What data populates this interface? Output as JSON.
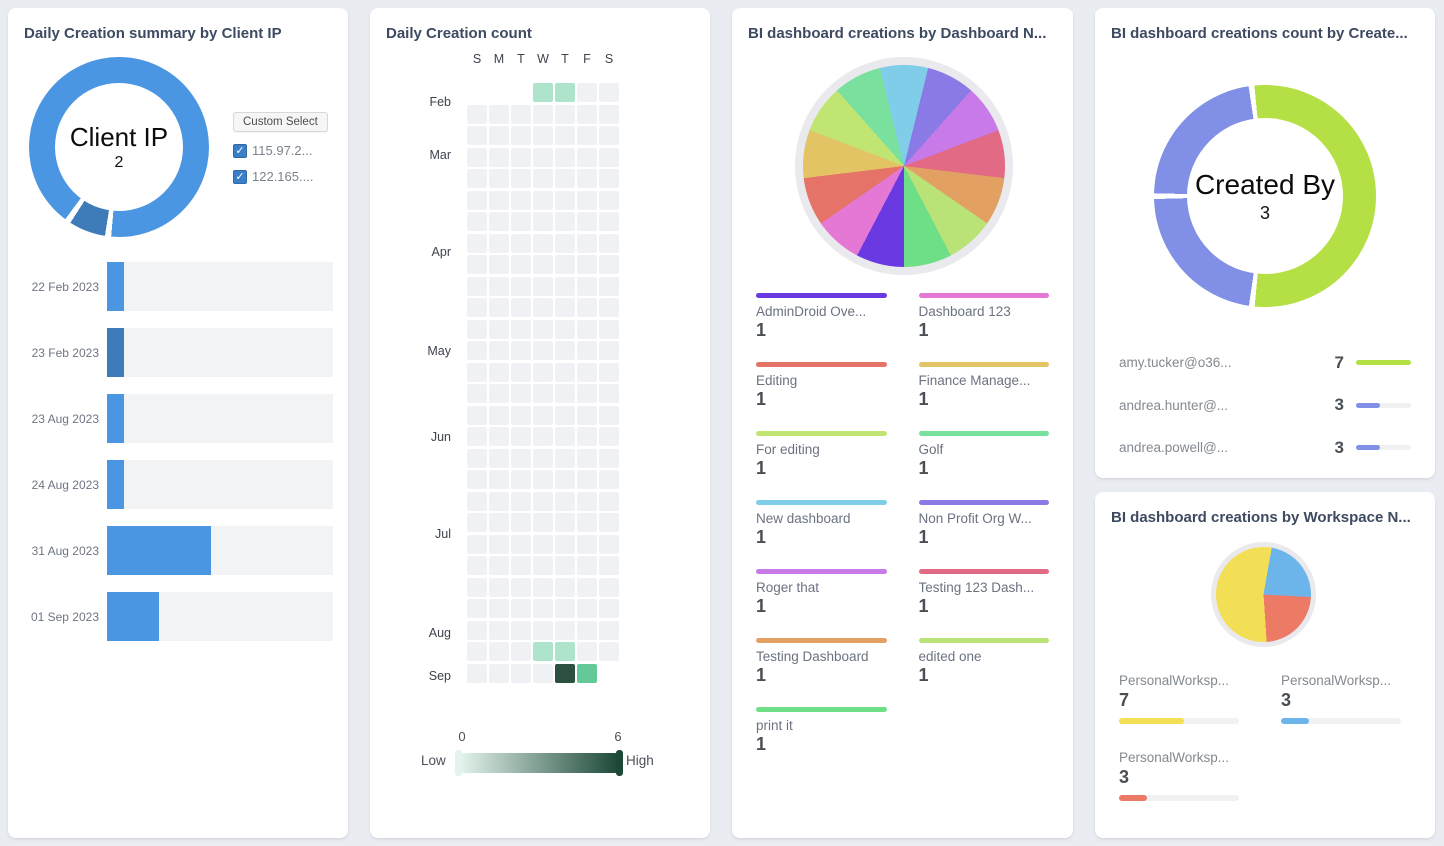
{
  "page": {
    "background": "#e9edf2"
  },
  "cards": [
    {
      "id": "client_ip",
      "title": "Daily Creation summary by Client IP",
      "custom_select_label": "Custom Select",
      "checkboxes": [
        {
          "label": "115.97.2...",
          "checked": true
        },
        {
          "label": "122.165....",
          "checked": true
        }
      ]
    },
    {
      "id": "daily_count",
      "title": "Daily Creation count"
    },
    {
      "id": "by_dashboard",
      "title": "BI dashboard creations by Dashboard N..."
    },
    {
      "id": "by_creator",
      "title": "BI dashboard creations count by Create..."
    },
    {
      "id": "by_workspace",
      "title": "BI dashboard creations by Workspace N..."
    }
  ],
  "chart_data": [
    {
      "id": "client_ip_donut",
      "type": "pie",
      "donut": true,
      "title": "Daily Creation summary by Client IP",
      "center_label": "Client IP",
      "center_value": "2",
      "series": [
        {
          "name": "115.97.2...",
          "value": 12,
          "color": "#4a96e2"
        },
        {
          "name": "122.165....",
          "value": 1,
          "color": "#3d7cb8"
        }
      ],
      "draw_order": [
        1,
        0
      ],
      "start_angle": 187,
      "gap_deg": 4
    },
    {
      "id": "client_ip_bars",
      "type": "bar",
      "orientation": "horizontal",
      "categories": [
        "22 Feb 2023",
        "23 Feb 2023",
        "23 Aug 2023",
        "24 Aug 2023",
        "31 Aug 2023",
        "01 Sep 2023"
      ],
      "values": [
        1,
        1,
        1,
        1,
        6,
        3
      ],
      "colors": [
        "#4a96e2",
        "#3d7cb8",
        "#4a96e2",
        "#4a96e2",
        "#4a96e2",
        "#4a96e2"
      ],
      "xmax": 13,
      "track_color": "#f2f3f5"
    },
    {
      "id": "daily_heatmap",
      "type": "heatmap",
      "title": "Daily Creation count",
      "weekday_labels": [
        "S",
        "M",
        "T",
        "W",
        "T",
        "F",
        "S"
      ],
      "month_labels": [
        {
          "label": "Feb",
          "row": 0.4
        },
        {
          "label": "Mar",
          "row": 2.9
        },
        {
          "label": "Apr",
          "row": 7.4
        },
        {
          "label": "May",
          "row": 12.0
        },
        {
          "label": "Jun",
          "row": 16.0
        },
        {
          "label": "Jul",
          "row": 20.5
        },
        {
          "label": "Aug",
          "row": 25.1
        },
        {
          "label": "Sep",
          "row": 27.1
        }
      ],
      "weeks": [
        [
          null,
          null,
          null,
          1,
          1,
          0,
          0
        ],
        [
          0,
          0,
          0,
          0,
          0,
          0,
          0
        ],
        [
          0,
          0,
          0,
          0,
          0,
          0,
          0
        ],
        [
          0,
          0,
          0,
          0,
          0,
          0,
          0
        ],
        [
          0,
          0,
          0,
          0,
          0,
          0,
          0
        ],
        [
          0,
          0,
          0,
          0,
          0,
          0,
          0
        ],
        [
          0,
          0,
          0,
          0,
          0,
          0,
          0
        ],
        [
          0,
          0,
          0,
          0,
          0,
          0,
          0
        ],
        [
          0,
          0,
          0,
          0,
          0,
          0,
          0
        ],
        [
          0,
          0,
          0,
          0,
          0,
          0,
          0
        ],
        [
          0,
          0,
          0,
          0,
          0,
          0,
          0
        ],
        [
          0,
          0,
          0,
          0,
          0,
          0,
          0
        ],
        [
          0,
          0,
          0,
          0,
          0,
          0,
          0
        ],
        [
          0,
          0,
          0,
          0,
          0,
          0,
          0
        ],
        [
          0,
          0,
          0,
          0,
          0,
          0,
          0
        ],
        [
          0,
          0,
          0,
          0,
          0,
          0,
          0
        ],
        [
          0,
          0,
          0,
          0,
          0,
          0,
          0
        ],
        [
          0,
          0,
          0,
          0,
          0,
          0,
          0
        ],
        [
          0,
          0,
          0,
          0,
          0,
          0,
          0
        ],
        [
          0,
          0,
          0,
          0,
          0,
          0,
          0
        ],
        [
          0,
          0,
          0,
          0,
          0,
          0,
          0
        ],
        [
          0,
          0,
          0,
          0,
          0,
          0,
          0
        ],
        [
          0,
          0,
          0,
          0,
          0,
          0,
          0
        ],
        [
          0,
          0,
          0,
          0,
          0,
          0,
          0
        ],
        [
          0,
          0,
          0,
          0,
          0,
          0,
          0
        ],
        [
          0,
          0,
          0,
          0,
          0,
          0,
          0
        ],
        [
          0,
          0,
          0,
          1,
          1,
          0,
          0
        ],
        [
          0,
          0,
          0,
          0,
          6,
          3,
          null
        ]
      ],
      "value_colors": {
        "0": "#f0f1f4",
        "1": "#aee4cb",
        "3": "#63c998",
        "6": "#2b5040"
      },
      "scale": {
        "min": "0",
        "max": "6",
        "low": "Low",
        "high": "High",
        "gradient": [
          "#e3f4ec",
          "#1d4838"
        ]
      }
    },
    {
      "id": "dashboard_pie",
      "type": "pie",
      "title": "BI dashboard creations by Dashboard N...",
      "series": [
        {
          "name": "AdminDroid Ove...",
          "value": 1,
          "color": "#6a39e2"
        },
        {
          "name": "Dashboard 123",
          "value": 1,
          "color": "#e478d4"
        },
        {
          "name": "Editing",
          "value": 1,
          "color": "#e57368"
        },
        {
          "name": "Finance Manage...",
          "value": 1,
          "color": "#e2c465"
        },
        {
          "name": "For editing",
          "value": 1,
          "color": "#c0e573"
        },
        {
          "name": "Golf",
          "value": 1,
          "color": "#79e09e"
        },
        {
          "name": "New dashboard",
          "value": 1,
          "color": "#7fcde8"
        },
        {
          "name": "Non Profit Org W...",
          "value": 1,
          "color": "#8a7ae6"
        },
        {
          "name": "Roger that",
          "value": 1,
          "color": "#c87ae8"
        },
        {
          "name": "Testing 123 Dash...",
          "value": 1,
          "color": "#e26a85"
        },
        {
          "name": "Testing Dashboard",
          "value": 1,
          "color": "#e2a163"
        },
        {
          "name": "edited one",
          "value": 1,
          "color": "#b9e377"
        },
        {
          "name": "print it",
          "value": 1,
          "color": "#6fdf87"
        }
      ],
      "draw_start_index": 6,
      "start_angle": -13.85,
      "gap_deg": 0,
      "ring_color": "#e9e9ee"
    },
    {
      "id": "creator_donut",
      "type": "pie",
      "donut": true,
      "title": "BI dashboard creations count by Create...",
      "center_label": "Created By",
      "center_value": "3",
      "series": [
        {
          "name": "amy.tucker@o36...",
          "value": 7,
          "color": "#b4df45"
        },
        {
          "name": "andrea.hunter@...",
          "value": 3,
          "color": "#8190e6"
        },
        {
          "name": "andrea.powell@...",
          "value": 3,
          "color": "#8190e6"
        }
      ],
      "start_angle": -7,
      "gap_deg": 3,
      "legend": [
        {
          "label": "amy.tucker@o36...",
          "value": 7,
          "color": "#b4df45"
        },
        {
          "label": "andrea.hunter@...",
          "value": 3,
          "color": "#8190e6"
        },
        {
          "label": "andrea.powell@...",
          "value": 3,
          "color": "#8190e6"
        }
      ],
      "legend_max": 7
    },
    {
      "id": "workspace_pie",
      "type": "pie",
      "title": "BI dashboard creations by Workspace N...",
      "series": [
        {
          "name": "PersonalWorksp...",
          "value": 7,
          "color": "#f2df55"
        },
        {
          "name": "PersonalWorksp...",
          "value": 3,
          "color": "#6cb5ea"
        },
        {
          "name": "PersonalWorksp...",
          "value": 3,
          "color": "#ec7a64"
        }
      ],
      "draw_order": [
        1,
        2,
        0
      ],
      "start_angle": 10,
      "gap_deg": 0,
      "ring_color": "#e9e9ee",
      "legend": [
        {
          "label": "PersonalWorksp...",
          "value": 7,
          "color": "#f2df55"
        },
        {
          "label": "PersonalWorksp...",
          "value": 3,
          "color": "#6cb5ea"
        },
        {
          "label": "PersonalWorksp...",
          "value": 3,
          "color": "#ec7a64"
        }
      ],
      "legend_total": 13
    }
  ]
}
